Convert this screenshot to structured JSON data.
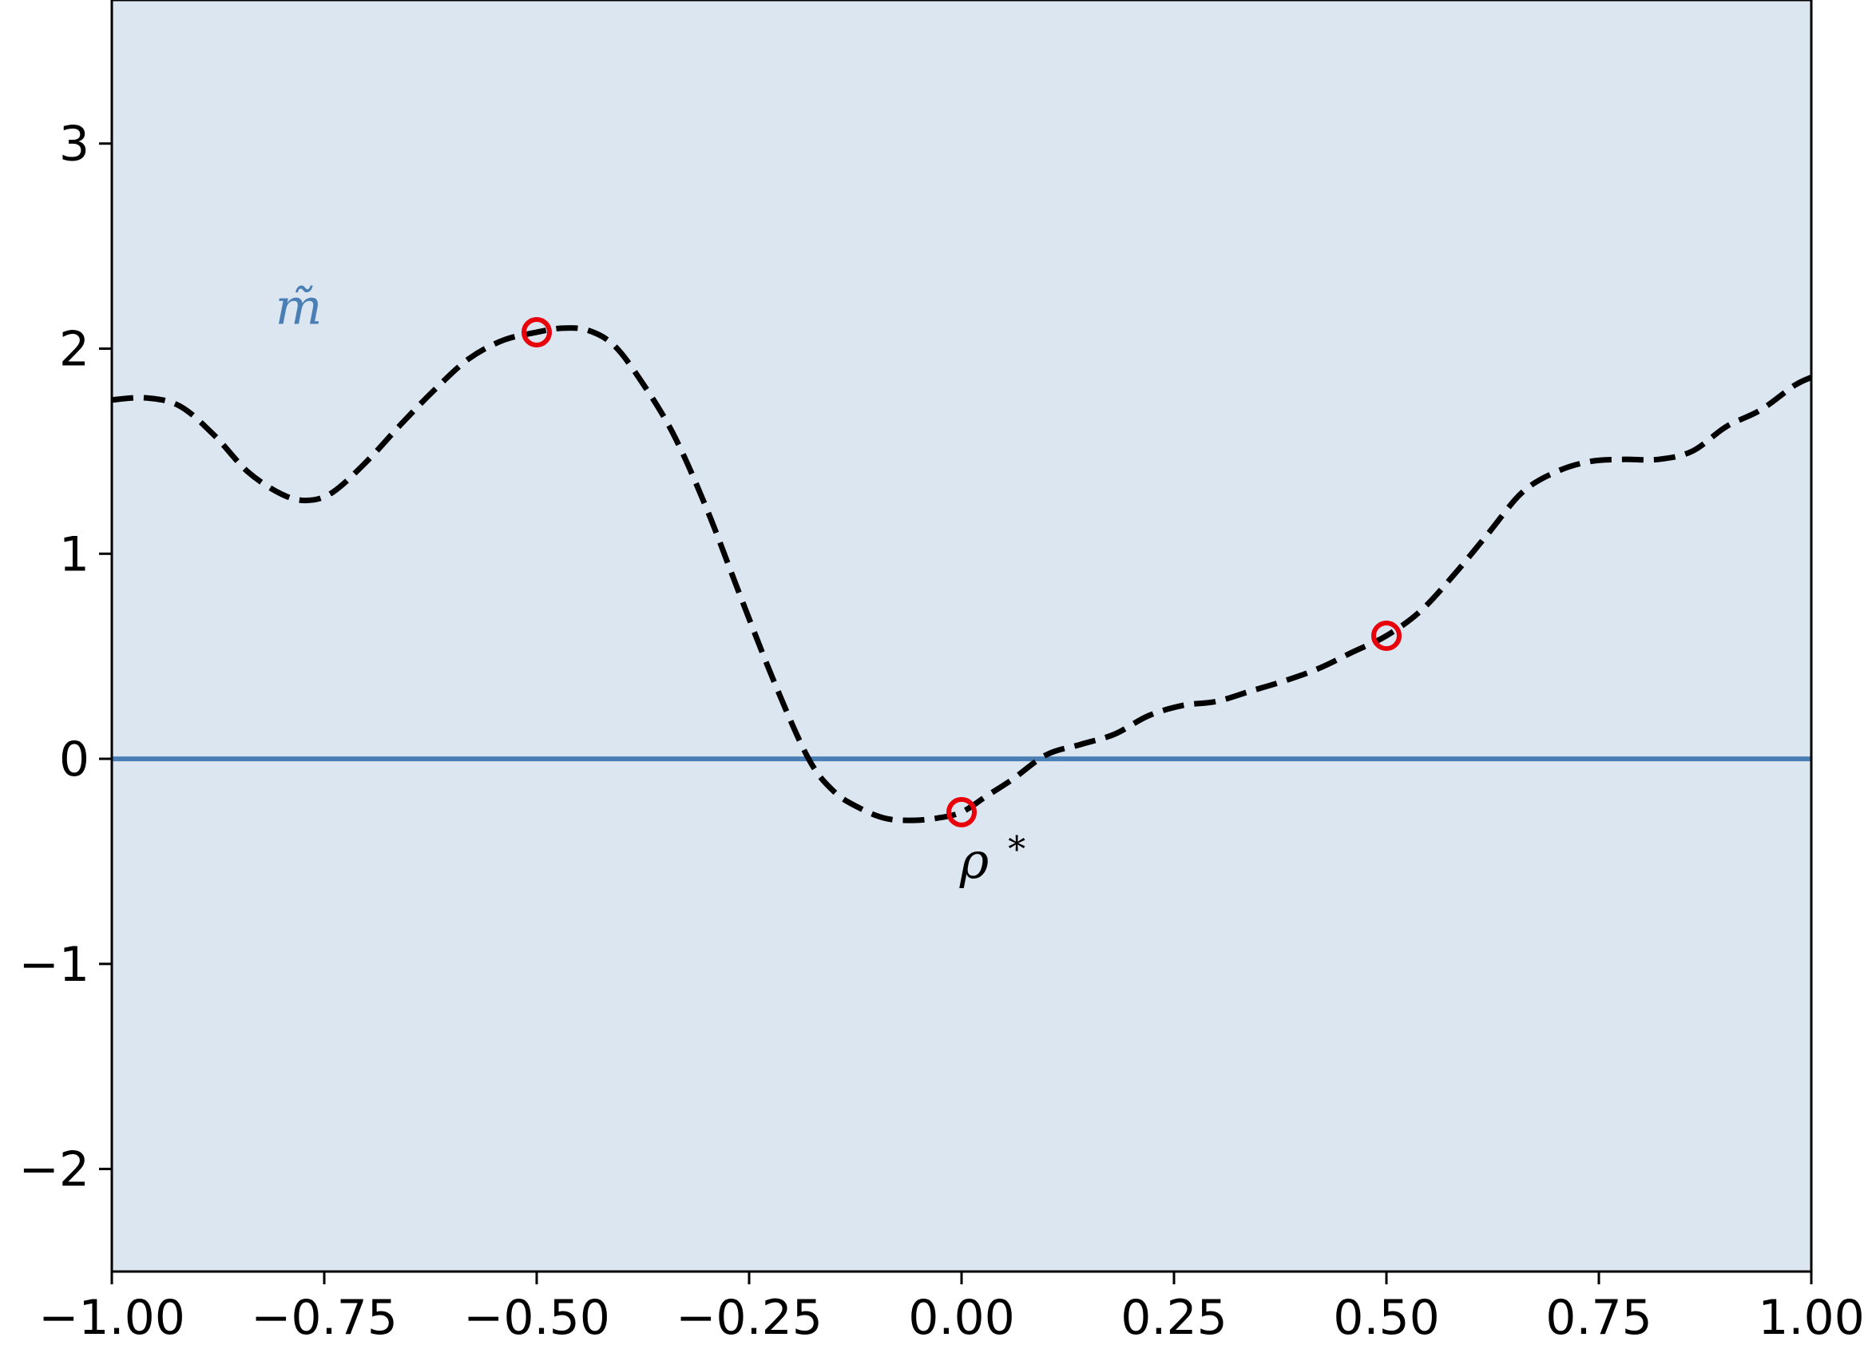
{
  "chart_data": {
    "type": "line",
    "xlim": [
      -1.0,
      1.0
    ],
    "ylim": [
      -2.5,
      3.7
    ],
    "xticks": [
      -1.0,
      -0.75,
      -0.5,
      -0.25,
      0.0,
      0.25,
      0.5,
      0.75,
      1.0
    ],
    "xtick_labels": [
      "−1.00",
      "−0.75",
      "−0.50",
      "−0.25",
      "0.00",
      "0.25",
      "0.50",
      "0.75",
      "1.00"
    ],
    "yticks": [
      -2,
      -1,
      0,
      1,
      2,
      3
    ],
    "ytick_labels": [
      "−2",
      "−1",
      "0",
      "1",
      "2",
      "3"
    ],
    "grid": false,
    "background_color": "#dce6f0",
    "series": [
      {
        "style": "dashed",
        "color": "#000000",
        "x": [
          -1.0,
          -0.96,
          -0.92,
          -0.88,
          -0.84,
          -0.8,
          -0.77,
          -0.74,
          -0.7,
          -0.66,
          -0.62,
          -0.58,
          -0.54,
          -0.5,
          -0.47,
          -0.44,
          -0.41,
          -0.38,
          -0.34,
          -0.3,
          -0.26,
          -0.22,
          -0.18,
          -0.15,
          -0.12,
          -0.09,
          -0.06,
          -0.03,
          0.0,
          0.03,
          0.06,
          0.1,
          0.14,
          0.18,
          0.22,
          0.26,
          0.3,
          0.34,
          0.38,
          0.42,
          0.46,
          0.5,
          0.54,
          0.58,
          0.62,
          0.66,
          0.7,
          0.74,
          0.78,
          0.82,
          0.86,
          0.9,
          0.94,
          0.98,
          1.0
        ],
        "y": [
          1.75,
          1.76,
          1.72,
          1.58,
          1.4,
          1.29,
          1.26,
          1.3,
          1.45,
          1.63,
          1.8,
          1.95,
          2.04,
          2.08,
          2.1,
          2.09,
          2.02,
          1.86,
          1.59,
          1.22,
          0.79,
          0.37,
          0.0,
          -0.16,
          -0.24,
          -0.29,
          -0.3,
          -0.29,
          -0.26,
          -0.18,
          -0.1,
          0.02,
          0.07,
          0.12,
          0.21,
          0.26,
          0.28,
          0.33,
          0.38,
          0.44,
          0.52,
          0.6,
          0.72,
          0.9,
          1.1,
          1.3,
          1.4,
          1.45,
          1.46,
          1.46,
          1.5,
          1.62,
          1.7,
          1.82,
          1.86
        ]
      },
      {
        "name": "m̃",
        "style": "solid",
        "color": "#4a7fb5",
        "x": [
          -1.0,
          1.0
        ],
        "y": [
          0.0,
          0.0
        ]
      }
    ],
    "markers": {
      "style": "open-circle",
      "color": "#e8000b",
      "x": [
        -0.5,
        0.0,
        0.5
      ],
      "y": [
        2.08,
        -0.26,
        0.6
      ]
    },
    "annotations": [
      {
        "text": "m̃",
        "x": -0.78,
        "y": 2.12,
        "color": "#4a7fb5"
      },
      {
        "text": "ρ",
        "x": 0.015,
        "y": -0.58,
        "color": "#000000"
      },
      {
        "text": "*",
        "x": 0.065,
        "y": -0.5,
        "color": "#000000"
      }
    ]
  }
}
